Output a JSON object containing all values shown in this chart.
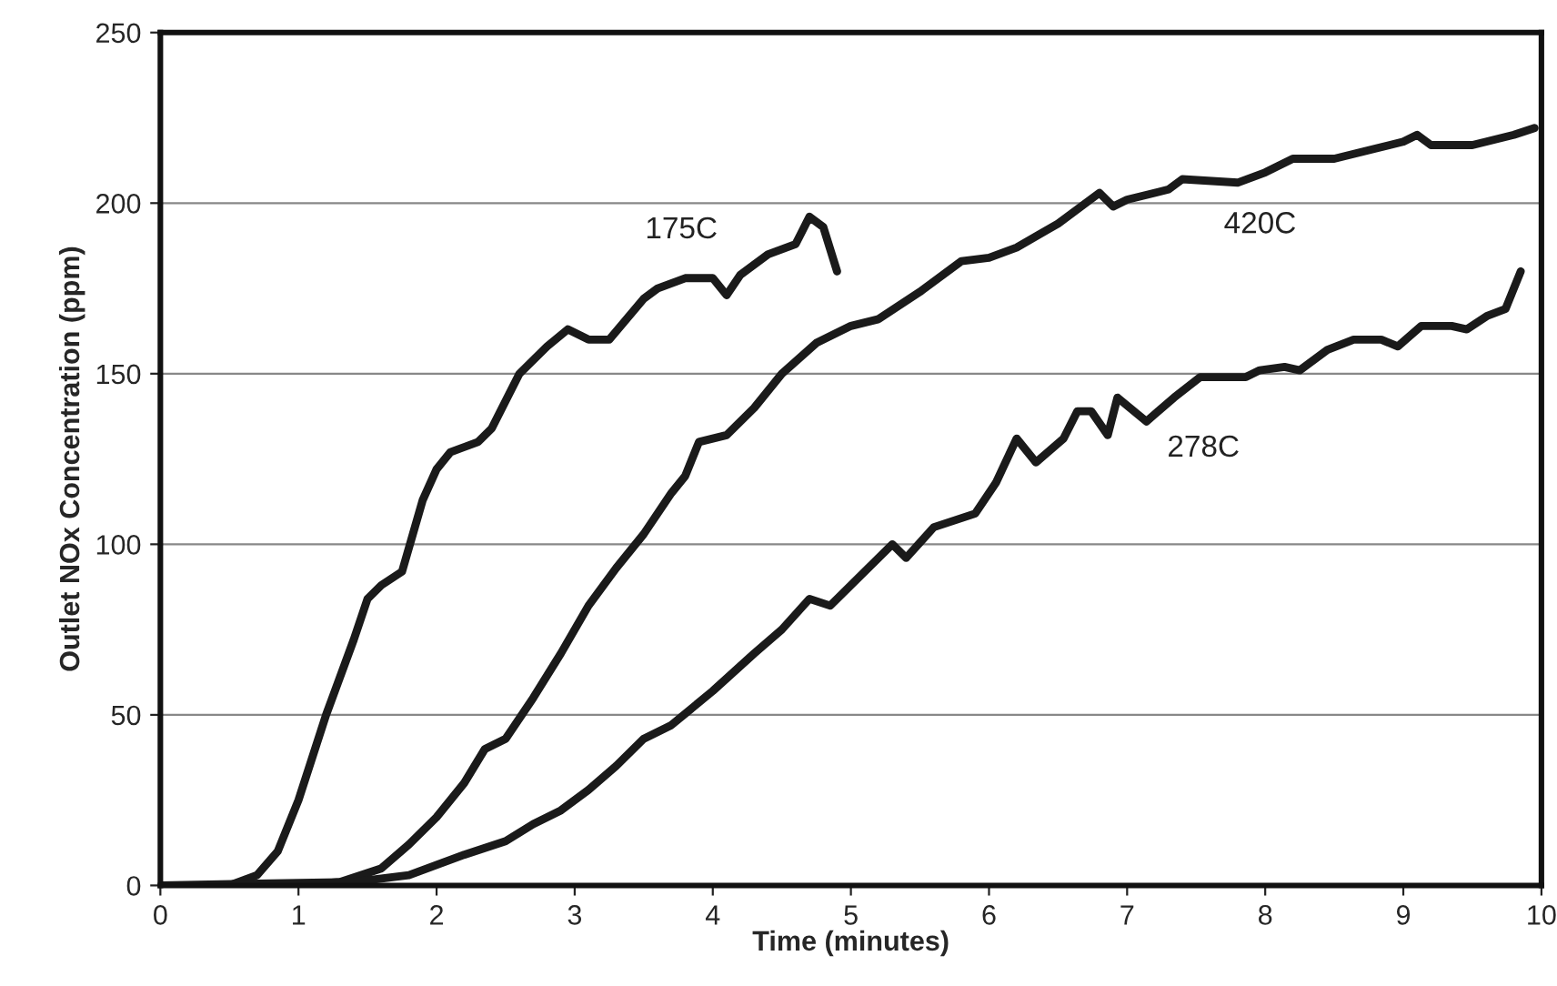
{
  "chart_data": {
    "type": "line",
    "xlabel": "Time (minutes)",
    "ylabel": "Outlet NOx Concentration (ppm)",
    "xlim": [
      0,
      10
    ],
    "xticks": [
      0,
      1,
      2,
      3,
      4,
      5,
      6,
      7,
      8,
      9,
      10
    ],
    "ylim": [
      0,
      250
    ],
    "yticks": [
      0,
      50,
      100,
      150,
      200,
      250
    ],
    "grid": "y",
    "legend": false,
    "marker": "none",
    "line_style": "solid",
    "series": [
      {
        "name": "175C",
        "color": "#1a1a1a",
        "x": [
          0,
          0.5,
          0.7,
          0.85,
          1.0,
          1.2,
          1.4,
          1.5,
          1.6,
          1.75,
          1.9,
          2.0,
          2.1,
          2.3,
          2.4,
          2.5,
          2.6,
          2.8,
          2.95,
          3.1,
          3.25,
          3.5,
          3.6,
          3.8,
          4.0,
          4.1,
          4.2,
          4.4,
          4.6,
          4.7,
          4.8,
          4.9
        ],
        "values": [
          0,
          0,
          3,
          10,
          25,
          50,
          72,
          84,
          88,
          92,
          113,
          122,
          127,
          130,
          134,
          142,
          150,
          158,
          163,
          160,
          160,
          172,
          175,
          178,
          178,
          173,
          179,
          185,
          188,
          196,
          193,
          180
        ]
      },
      {
        "name": "420C",
        "color": "#1a1a1a",
        "x": [
          0,
          1.0,
          1.3,
          1.6,
          1.8,
          2.0,
          2.2,
          2.35,
          2.5,
          2.7,
          2.9,
          3.1,
          3.3,
          3.5,
          3.7,
          3.8,
          3.9,
          4.1,
          4.3,
          4.5,
          4.75,
          5.0,
          5.2,
          5.5,
          5.8,
          6.0,
          6.2,
          6.5,
          6.8,
          6.9,
          7.0,
          7.3,
          7.4,
          7.8,
          8.0,
          8.2,
          8.5,
          8.8,
          9.0,
          9.1,
          9.2,
          9.5,
          9.8,
          9.95
        ],
        "values": [
          0,
          0,
          1,
          5,
          12,
          20,
          30,
          40,
          43,
          55,
          68,
          82,
          93,
          103,
          115,
          120,
          130,
          132,
          140,
          150,
          159,
          164,
          166,
          174,
          183,
          184,
          187,
          194,
          203,
          199,
          201,
          204,
          207,
          206,
          209,
          213,
          213,
          216,
          218,
          220,
          217,
          217,
          220,
          222
        ]
      },
      {
        "name": "278C",
        "color": "#1a1a1a",
        "x": [
          0,
          1.4,
          1.8,
          2.0,
          2.2,
          2.5,
          2.7,
          2.9,
          3.1,
          3.3,
          3.5,
          3.7,
          4.0,
          4.3,
          4.5,
          4.7,
          4.85,
          5.0,
          5.2,
          5.3,
          5.4,
          5.6,
          5.9,
          6.05,
          6.2,
          6.34,
          6.54,
          6.64,
          6.74,
          6.86,
          6.93,
          7.14,
          7.34,
          7.53,
          7.86,
          7.96,
          8.14,
          8.25,
          8.45,
          8.64,
          8.84,
          8.96,
          9.13,
          9.35,
          9.46,
          9.61,
          9.74,
          9.85
        ],
        "values": [
          0,
          1,
          3,
          6,
          9,
          13,
          18,
          22,
          28,
          35,
          43,
          47,
          57,
          68,
          75,
          84,
          82,
          88,
          96,
          100,
          96,
          105,
          109,
          118,
          131,
          124,
          131,
          139,
          139,
          132,
          143,
          136,
          143,
          149,
          149,
          151,
          152,
          151,
          157,
          160,
          160,
          158,
          164,
          164,
          163,
          167,
          169,
          180
        ]
      }
    ]
  }
}
